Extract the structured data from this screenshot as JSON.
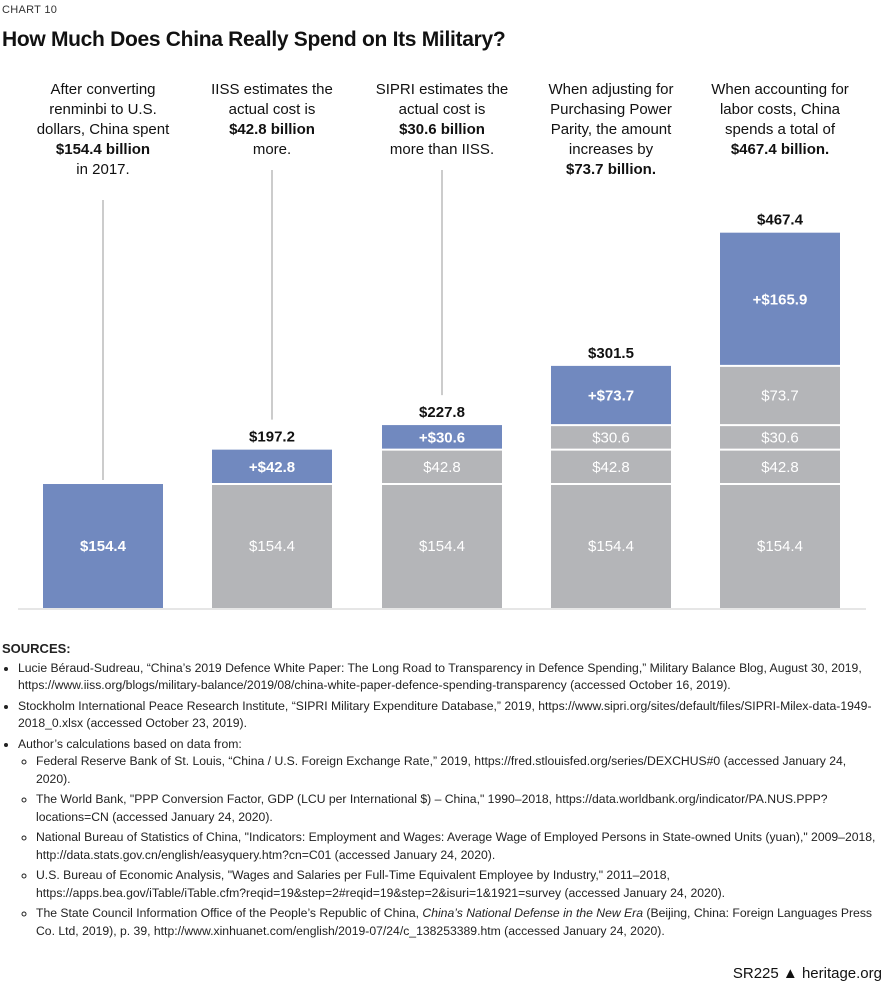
{
  "header": {
    "label": "CHART 10",
    "title": "How Much Does China Really Spend on Its Military?"
  },
  "chart_data": {
    "type": "bar",
    "stacked": true,
    "title": "How Much Does China Really Spend on Its Military?",
    "categories": [
      "After converting renminbi to U.S. dollars",
      "IISS estimates",
      "SIPRI estimates",
      "Purchasing Power Parity",
      "Labor costs"
    ],
    "segments": [
      [
        {
          "value": 154.4,
          "label": "$154.4",
          "new": true
        }
      ],
      [
        {
          "value": 154.4,
          "label": "$154.4"
        },
        {
          "value": 42.8,
          "label": "+$42.8",
          "new": true
        }
      ],
      [
        {
          "value": 154.4,
          "label": "$154.4"
        },
        {
          "value": 42.8,
          "label": "$42.8"
        },
        {
          "value": 30.6,
          "label": "+$30.6",
          "new": true
        }
      ],
      [
        {
          "value": 154.4,
          "label": "$154.4"
        },
        {
          "value": 42.8,
          "label": "$42.8"
        },
        {
          "value": 30.6,
          "label": "$30.6"
        },
        {
          "value": 73.7,
          "label": "+$73.7",
          "new": true
        }
      ],
      [
        {
          "value": 154.4,
          "label": "$154.4"
        },
        {
          "value": 42.8,
          "label": "$42.8"
        },
        {
          "value": 30.6,
          "label": "$30.6"
        },
        {
          "value": 73.7,
          "label": "$73.7"
        },
        {
          "value": 165.9,
          "label": "+$165.9",
          "new": true
        }
      ]
    ],
    "totals": [
      "",
      "$197.2",
      "$227.8",
      "$301.5",
      "$467.4"
    ],
    "ylim": [
      0,
      480
    ],
    "grid": false,
    "colors": {
      "new": "#7189bf",
      "previous": "#b4b5b8"
    },
    "annotations": [
      {
        "pre": "After converting renminbi to U.S. dollars, China spent",
        "bold": "$154.4 billion",
        "post": "in 2017."
      },
      {
        "pre": "IISS estimates the actual cost is",
        "bold": "$42.8 billion",
        "post": "more."
      },
      {
        "pre": "SIPRI estimates the actual cost is",
        "bold": "$30.6 billion",
        "post": "more than IISS."
      },
      {
        "pre": "When adjusting for Purchasing Power Parity, the amount increases by",
        "bold": "$73.7 billion.",
        "post": ""
      },
      {
        "pre": "When accounting for labor costs, China spends a total of",
        "bold": "$467.4 billion.",
        "post": ""
      }
    ]
  },
  "sources": {
    "heading": "SOURCES:",
    "items": [
      "Lucie Béraud-Sudreau, “China’s 2019 Defence White Paper: The Long Road to Transparency in Defence Spending,” Military Balance Blog, August 30, 2019, https://www.iiss.org/blogs/military-balance/2019/08/china-white-paper-defence-spending-transparency (accessed October 16, 2019).",
      "Stockholm International Peace Research Institute, “SIPRI Military Expenditure Database,” 2019, https://www.sipri.org/sites/default/files/SIPRI-Milex-data-1949-2018_0.xlsx (accessed October 23, 2019).",
      "Author’s calculations based on data from:"
    ],
    "subitems": [
      "Federal Reserve Bank of St. Louis, “China / U.S. Foreign Exchange Rate,” 2019, https://fred.stlouisfed.org/series/DEXCHUS#0 (accessed January 24, 2020).",
      "The World Bank, \"PPP Conversion Factor, GDP (LCU per International $) – China,\" 1990–2018, https://data.worldbank.org/indicator/PA.NUS.PPP?locations=CN (accessed January 24, 2020).",
      "National Bureau of Statistics of China, \"Indicators: Employment and Wages: Average Wage of Employed Persons in State-owned Units (yuan),\" 2009–2018, http://data.stats.gov.cn/english/easyquery.htm?cn=C01 (accessed January 24, 2020).",
      "U.S. Bureau of Economic Analysis, \"Wages and Salaries per Full-Time Equivalent Employee by Industry,\" 2011–2018, https://apps.bea.gov/iTable/iTable.cfm?reqid=19&step=2#reqid=19&step=2&isuri=1&1921=survey (accessed January 24, 2020)."
    ],
    "last_pre": "The State Council Information Office of the People’s Republic of China, ",
    "last_italic": "China’s National Defense in the New Era",
    "last_post": " (Beijing, China: Foreign Languages Press Co. Ltd, 2019), p. 39, http://www.xinhuanet.com/english/2019-07/24/c_138253389.htm (accessed January 24, 2020)."
  },
  "footer": {
    "code": "SR225",
    "site": "heritage.org",
    "icon": "bell-icon"
  }
}
